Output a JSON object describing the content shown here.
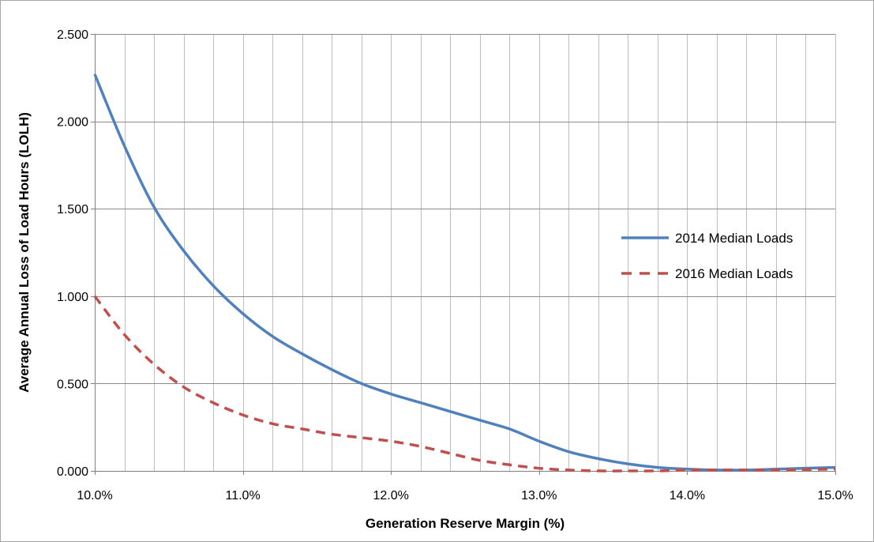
{
  "chart_data": {
    "type": "line",
    "title": "",
    "xlabel": "Generation Reserve Margin (%)",
    "ylabel": "Average Annual Loss of Load Hours (LOLH)",
    "xlim": [
      10.0,
      15.0
    ],
    "ylim": [
      0,
      2.5
    ],
    "x_ticks": [
      10.0,
      11.0,
      12.0,
      13.0,
      14.0,
      15.0
    ],
    "x_tick_labels": [
      "10.0%",
      "11.0%",
      "12.0%",
      "13.0%",
      "14.0%",
      "15.0%"
    ],
    "x_minor_step": 0.2,
    "y_ticks": [
      0,
      0.5,
      1.0,
      1.5,
      2.0,
      2.5
    ],
    "y_tick_labels": [
      "0.000",
      "0.500",
      "1.000",
      "1.500",
      "2.000",
      "2.500"
    ],
    "grid": true,
    "legend_position": "right",
    "series": [
      {
        "name": "2014 Median Loads",
        "color": "#4f81bd",
        "style": "solid",
        "x": [
          10.0,
          10.2,
          10.4,
          10.6,
          10.8,
          11.0,
          11.2,
          11.4,
          11.6,
          11.8,
          12.0,
          12.2,
          12.4,
          12.6,
          12.8,
          13.0,
          13.2,
          13.4,
          13.6,
          13.8,
          14.0,
          14.2,
          14.4,
          14.6,
          14.8,
          15.0
        ],
        "y": [
          2.27,
          1.86,
          1.51,
          1.26,
          1.06,
          0.9,
          0.77,
          0.67,
          0.58,
          0.5,
          0.44,
          0.39,
          0.34,
          0.29,
          0.24,
          0.17,
          0.11,
          0.07,
          0.04,
          0.02,
          0.01,
          0.005,
          0.005,
          0.01,
          0.015,
          0.02
        ]
      },
      {
        "name": "2016 Median Loads",
        "color": "#c0504d",
        "style": "dashed",
        "x": [
          10.0,
          10.2,
          10.4,
          10.6,
          10.8,
          11.0,
          11.2,
          11.4,
          11.6,
          11.8,
          12.0,
          12.2,
          12.4,
          12.6,
          12.8,
          13.0,
          13.2,
          13.4,
          13.6,
          13.8,
          14.0,
          14.2,
          14.4,
          14.6,
          14.8,
          15.0
        ],
        "y": [
          1.0,
          0.78,
          0.61,
          0.48,
          0.39,
          0.32,
          0.27,
          0.24,
          0.21,
          0.19,
          0.17,
          0.14,
          0.1,
          0.06,
          0.035,
          0.015,
          0.005,
          0.0,
          0.0,
          0.0,
          0.005,
          0.005,
          0.005,
          0.005,
          0.008,
          0.01
        ]
      }
    ]
  }
}
